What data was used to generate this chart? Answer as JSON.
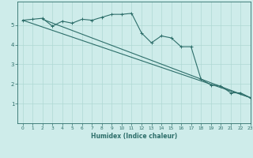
{
  "line1_x": [
    0,
    1,
    2,
    3,
    4,
    5,
    6,
    7,
    8,
    9,
    10,
    11,
    12,
    13,
    14,
    15,
    16,
    17,
    18,
    19,
    20,
    21,
    22,
    23
  ],
  "line1_y": [
    5.25,
    5.3,
    5.35,
    4.95,
    5.2,
    5.1,
    5.3,
    5.25,
    5.4,
    5.55,
    5.55,
    5.6,
    4.6,
    4.1,
    4.45,
    4.35,
    3.9,
    3.9,
    2.25,
    1.95,
    1.9,
    1.55,
    1.55,
    1.3
  ],
  "line2_x": [
    0,
    23
  ],
  "line2_y": [
    5.25,
    1.3
  ],
  "line3_x": [
    2,
    23
  ],
  "line3_y": [
    5.3,
    1.3
  ],
  "color": "#2d6e6a",
  "bg_color": "#ceecea",
  "grid_color": "#afd8d4",
  "xlabel": "Humidex (Indice chaleur)",
  "xlim": [
    -0.5,
    23
  ],
  "ylim": [
    0,
    6.2
  ],
  "xticks": [
    0,
    1,
    2,
    3,
    4,
    5,
    6,
    7,
    8,
    9,
    10,
    11,
    12,
    13,
    14,
    15,
    16,
    17,
    18,
    19,
    20,
    21,
    22,
    23
  ],
  "yticks": [
    1,
    2,
    3,
    4,
    5
  ],
  "marker_size": 2.5,
  "line_width": 0.8
}
